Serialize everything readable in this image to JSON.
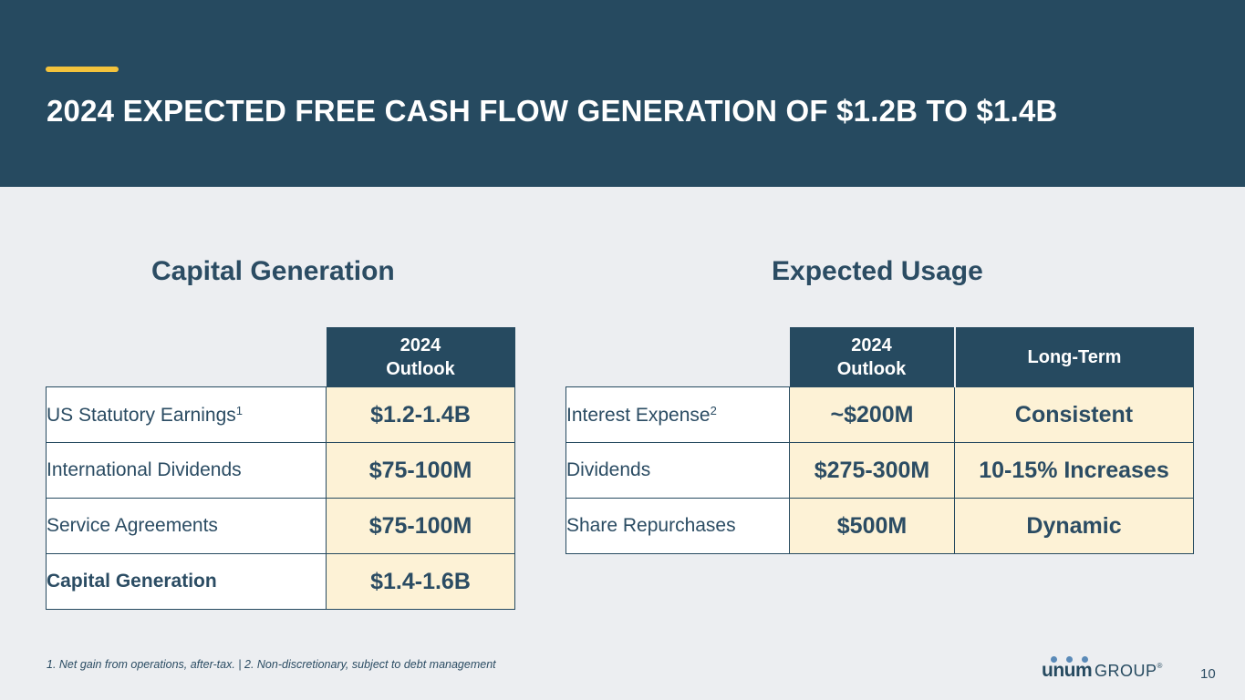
{
  "header": {
    "title": "2024 EXPECTED FREE CASH FLOW GENERATION OF $1.2B TO $1.4B"
  },
  "capital_generation": {
    "heading": "Capital Generation",
    "column_header": [
      "2024",
      "Outlook"
    ],
    "rows": [
      {
        "label": "US Statutory Earnings",
        "footnote": "1",
        "value": "$1.2-1.4B"
      },
      {
        "label": "International Dividends",
        "value": "$75-100M"
      },
      {
        "label": "Service Agreements",
        "value": "$75-100M"
      },
      {
        "label": "Capital Generation",
        "value": "$1.4-1.6B"
      }
    ]
  },
  "expected_usage": {
    "heading": "Expected Usage",
    "column_headers": {
      "outlook": [
        "2024",
        "Outlook"
      ],
      "long_term": "Long-Term"
    },
    "rows": [
      {
        "label": "Interest Expense",
        "footnote": "2",
        "outlook": "~$200M",
        "long_term": "Consistent"
      },
      {
        "label": "Dividends",
        "outlook": "$275-300M",
        "long_term": "10-15% Increases"
      },
      {
        "label": "Share Repurchases",
        "outlook": "$500M",
        "long_term": "Dynamic"
      }
    ]
  },
  "footer": {
    "footnotes": "1. Net gain from operations, after-tax.  |  2. Non-discretionary, subject to debt management",
    "logo_word": "unum",
    "logo_group": "GROUP",
    "logo_mark": "®",
    "page_number": "10"
  },
  "colors": {
    "header_bg": "#264a60",
    "accent": "#f3c33c",
    "value_cell_bg": "#fdf2d6",
    "page_bg": "#eceef1"
  }
}
